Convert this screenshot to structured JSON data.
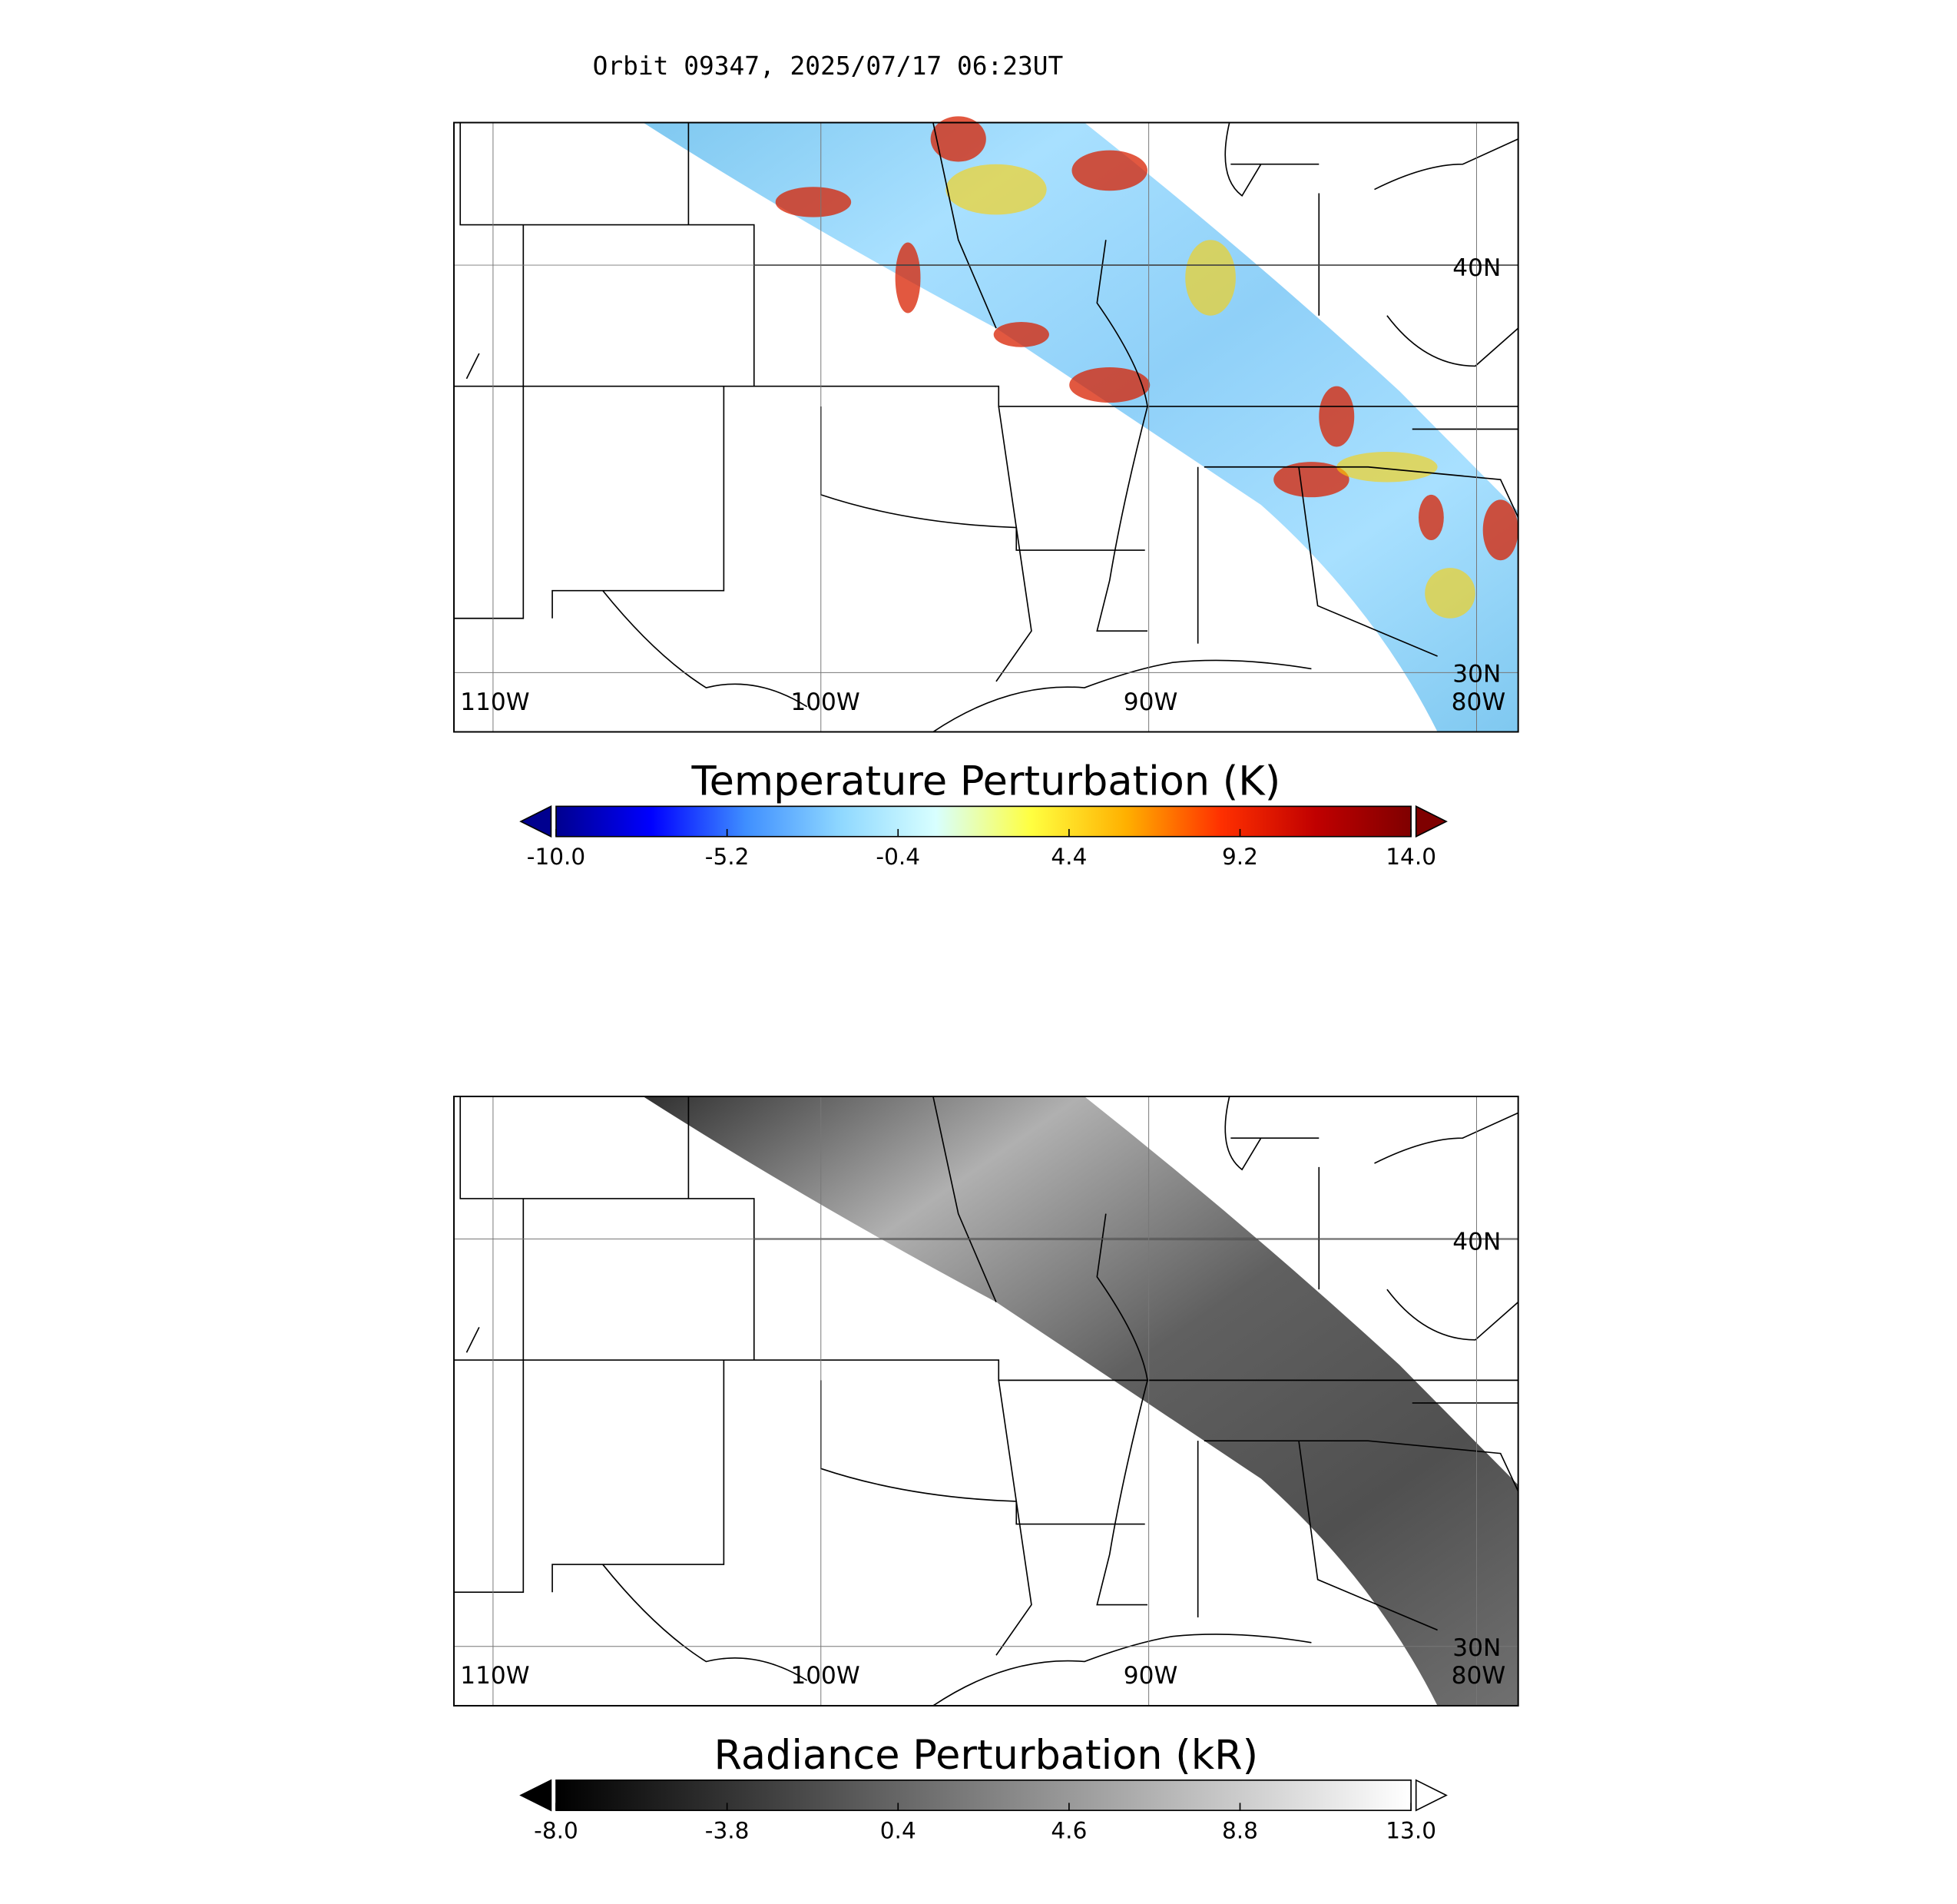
{
  "title": "Orbit 09347, 2025/07/17 06:23UT",
  "panels": [
    {
      "map_labels": {
        "lon": [
          "110W",
          "100W",
          "90W",
          "80W"
        ],
        "lat": [
          "40N",
          "30N"
        ]
      },
      "colorbar": {
        "title": "Temperature Perturbation (K)",
        "ticks": [
          {
            "value": -10,
            "label": "-10.0"
          },
          -5.2,
          -0.4,
          4.4,
          9.2,
          {
            "value": 14,
            "label": "14.0"
          }
        ],
        "colors": [
          "#00008f",
          "#0000ff",
          "#3f8fff",
          "#8fd8ff",
          "#d8ffff",
          "#ffff40",
          "#ffb000",
          "#ff3000",
          "#c00000",
          "#7f0000"
        ]
      }
    },
    {
      "map_labels": {
        "lon": [
          "110W",
          "100W",
          "90W",
          "80W"
        ],
        "lat": [
          "40N",
          "30N"
        ]
      },
      "colorbar": {
        "title": "Radiance Perturbation (kR)",
        "ticks": [
          {
            "value": -8,
            "label": "-8.0"
          },
          -3.8,
          0.4,
          4.6,
          8.8,
          {
            "value": 13,
            "label": "13.0"
          }
        ],
        "colors": [
          "#000000",
          "#ffffff"
        ]
      }
    }
  ]
}
